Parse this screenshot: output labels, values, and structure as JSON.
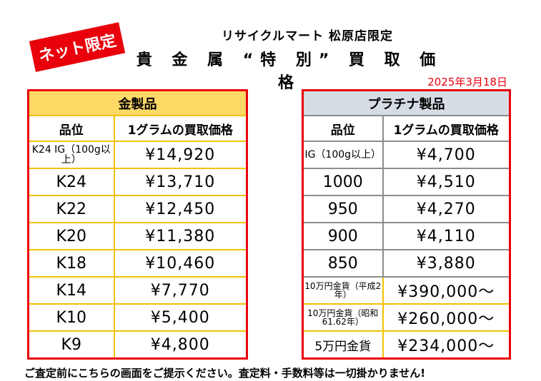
{
  "stamp": "ネット限定",
  "store_line": "リサイクルマート 松原店限定",
  "title": "貴 金 属 “特 別” 買 取 価 格",
  "date": "2025年3月18日",
  "gold": {
    "heading": "金製品",
    "col_grade": "品位",
    "col_price": "1グラムの買取価格",
    "rows": [
      {
        "grade": "K24 IG（100g以上）",
        "price": "¥14,920"
      },
      {
        "grade": "K24",
        "price": "¥13,710"
      },
      {
        "grade": "K22",
        "price": "¥12,450"
      },
      {
        "grade": "K20",
        "price": "¥11,380"
      },
      {
        "grade": "K18",
        "price": "¥10,460"
      },
      {
        "grade": "K14",
        "price": "¥7,770"
      },
      {
        "grade": "K10",
        "price": "¥5,400"
      },
      {
        "grade": "K9",
        "price": "¥4,800"
      }
    ]
  },
  "platinum": {
    "heading": "プラチナ製品",
    "col_grade": "品位",
    "col_price": "1グラムの買取価格",
    "rows": [
      {
        "grade": "IG（100g以上）",
        "price": "¥4,700"
      },
      {
        "grade": "1000",
        "price": "¥4,510"
      },
      {
        "grade": "950",
        "price": "¥4,270"
      },
      {
        "grade": "900",
        "price": "¥4,110"
      },
      {
        "grade": "850",
        "price": "¥3,880"
      },
      {
        "grade": "10万円金貨（平成2年）",
        "price": "¥390,000～"
      },
      {
        "grade": "10万円金貨（昭和61.62年）",
        "price": "¥260,000～"
      },
      {
        "grade": "5万円金貨",
        "price": "¥234,000～"
      }
    ]
  },
  "footer": "ご査定前にこちらの画面をご提示ください。査定料・手数料等は一切掛かりません!",
  "colors": {
    "red": "#e8000b",
    "gold_header": "#ffd966",
    "plat_header": "#d6dce4",
    "gold_border": "#f2c100",
    "grey_border": "#8c8c8c"
  }
}
